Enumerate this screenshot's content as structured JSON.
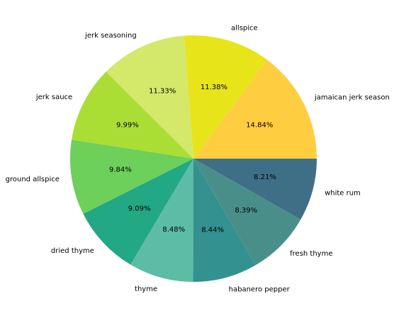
{
  "chart_data": {
    "type": "pie",
    "title": "",
    "categories": [
      "jamaican jerk season",
      "allspice",
      "jerk seasoning",
      "jerk sauce",
      "ground allspice",
      "dried thyme",
      "thyme",
      "habanero pepper",
      "fresh thyme",
      "white rum"
    ],
    "values": [
      14.84,
      11.38,
      11.33,
      9.99,
      9.84,
      9.09,
      8.48,
      8.44,
      8.39,
      8.21
    ],
    "percent_labels": [
      "14.84%",
      "11.38%",
      "11.33%",
      "9.99%",
      "9.84%",
      "9.09%",
      "8.48%",
      "8.44%",
      "8.39%",
      "8.21%"
    ],
    "colors": [
      "#FFCE40",
      "#E8E41A",
      "#D4E86A",
      "#AADE34",
      "#6CD05A",
      "#22A884",
      "#5CBCA6",
      "#33918F",
      "#4A8E8A",
      "#3F6F87"
    ],
    "start_angle_deg": 0,
    "direction": "counterclockwise",
    "legend": "none"
  }
}
